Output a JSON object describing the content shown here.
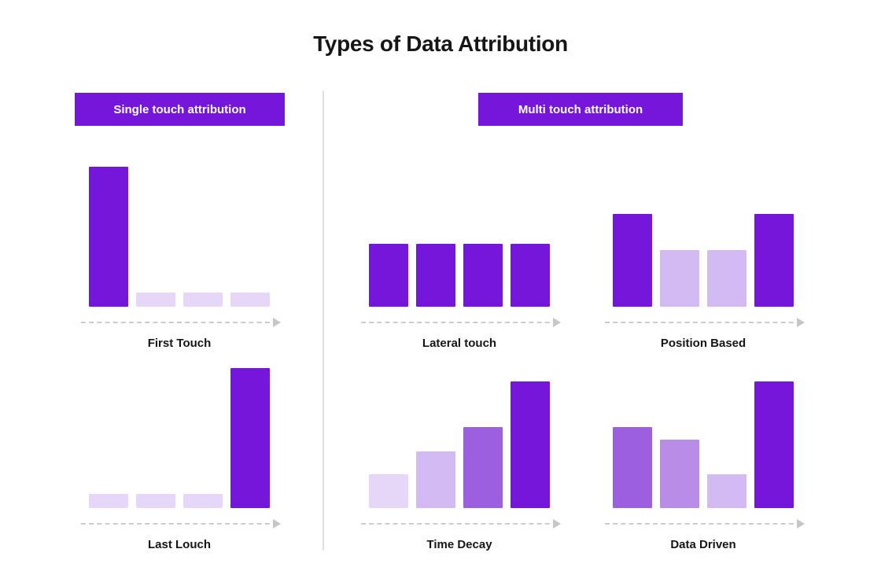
{
  "page": {
    "title": "Types of Data Attribution"
  },
  "palette": {
    "primary": "#7517DB",
    "light": "#E6D7F8",
    "lavender": "#D3BAF2",
    "medium": "#9B5FE0",
    "soft": "#B98CE8",
    "axis": "#CCCCCC",
    "arrow": "#C6C6C6",
    "divider": "#E0E0E0",
    "label": "#161616",
    "badge_text": "#FFFFFF"
  },
  "sections": [
    {
      "id": "single",
      "badge": "Single touch attribution"
    },
    {
      "id": "multi",
      "badge": "Multi touch attribution"
    }
  ],
  "chart_data": [
    {
      "type": "bar",
      "title": "First Touch",
      "section": "Single touch attribution",
      "values": [
        100,
        10,
        10,
        10
      ],
      "colors": [
        "primary",
        "light",
        "light",
        "light"
      ],
      "xlabel": "",
      "ylabel": "",
      "grid": false,
      "axis_style": "dashed-arrow"
    },
    {
      "type": "bar",
      "title": "Last Louch",
      "section": "Single touch attribution",
      "values": [
        10,
        10,
        10,
        100
      ],
      "colors": [
        "light",
        "light",
        "light",
        "primary"
      ],
      "xlabel": "",
      "ylabel": "",
      "grid": false,
      "axis_style": "dashed-arrow"
    },
    {
      "type": "bar",
      "title": "Lateral touch",
      "section": "Multi touch attribution",
      "values": [
        68,
        68,
        68,
        68
      ],
      "colors": [
        "primary",
        "primary",
        "primary",
        "primary"
      ],
      "xlabel": "",
      "ylabel": "",
      "grid": false,
      "axis_style": "dashed-arrow"
    },
    {
      "type": "bar",
      "title": "Position Based",
      "section": "Multi touch attribution",
      "values": [
        100,
        61,
        61,
        100
      ],
      "colors": [
        "primary",
        "lavender",
        "lavender",
        "primary"
      ],
      "xlabel": "",
      "ylabel": "",
      "grid": false,
      "axis_style": "dashed-arrow"
    },
    {
      "type": "bar",
      "title": "Time Decay",
      "section": "Multi touch attribution",
      "values": [
        27,
        45,
        64,
        100
      ],
      "colors": [
        "light",
        "lavender",
        "medium",
        "primary"
      ],
      "xlabel": "",
      "ylabel": "",
      "grid": false,
      "axis_style": "dashed-arrow"
    },
    {
      "type": "bar",
      "title": "Data Driven",
      "section": "Multi touch attribution",
      "values": [
        64,
        54,
        27,
        100
      ],
      "colors": [
        "medium",
        "soft",
        "lavender",
        "primary"
      ],
      "xlabel": "",
      "ylabel": "",
      "grid": false,
      "axis_style": "dashed-arrow"
    }
  ]
}
